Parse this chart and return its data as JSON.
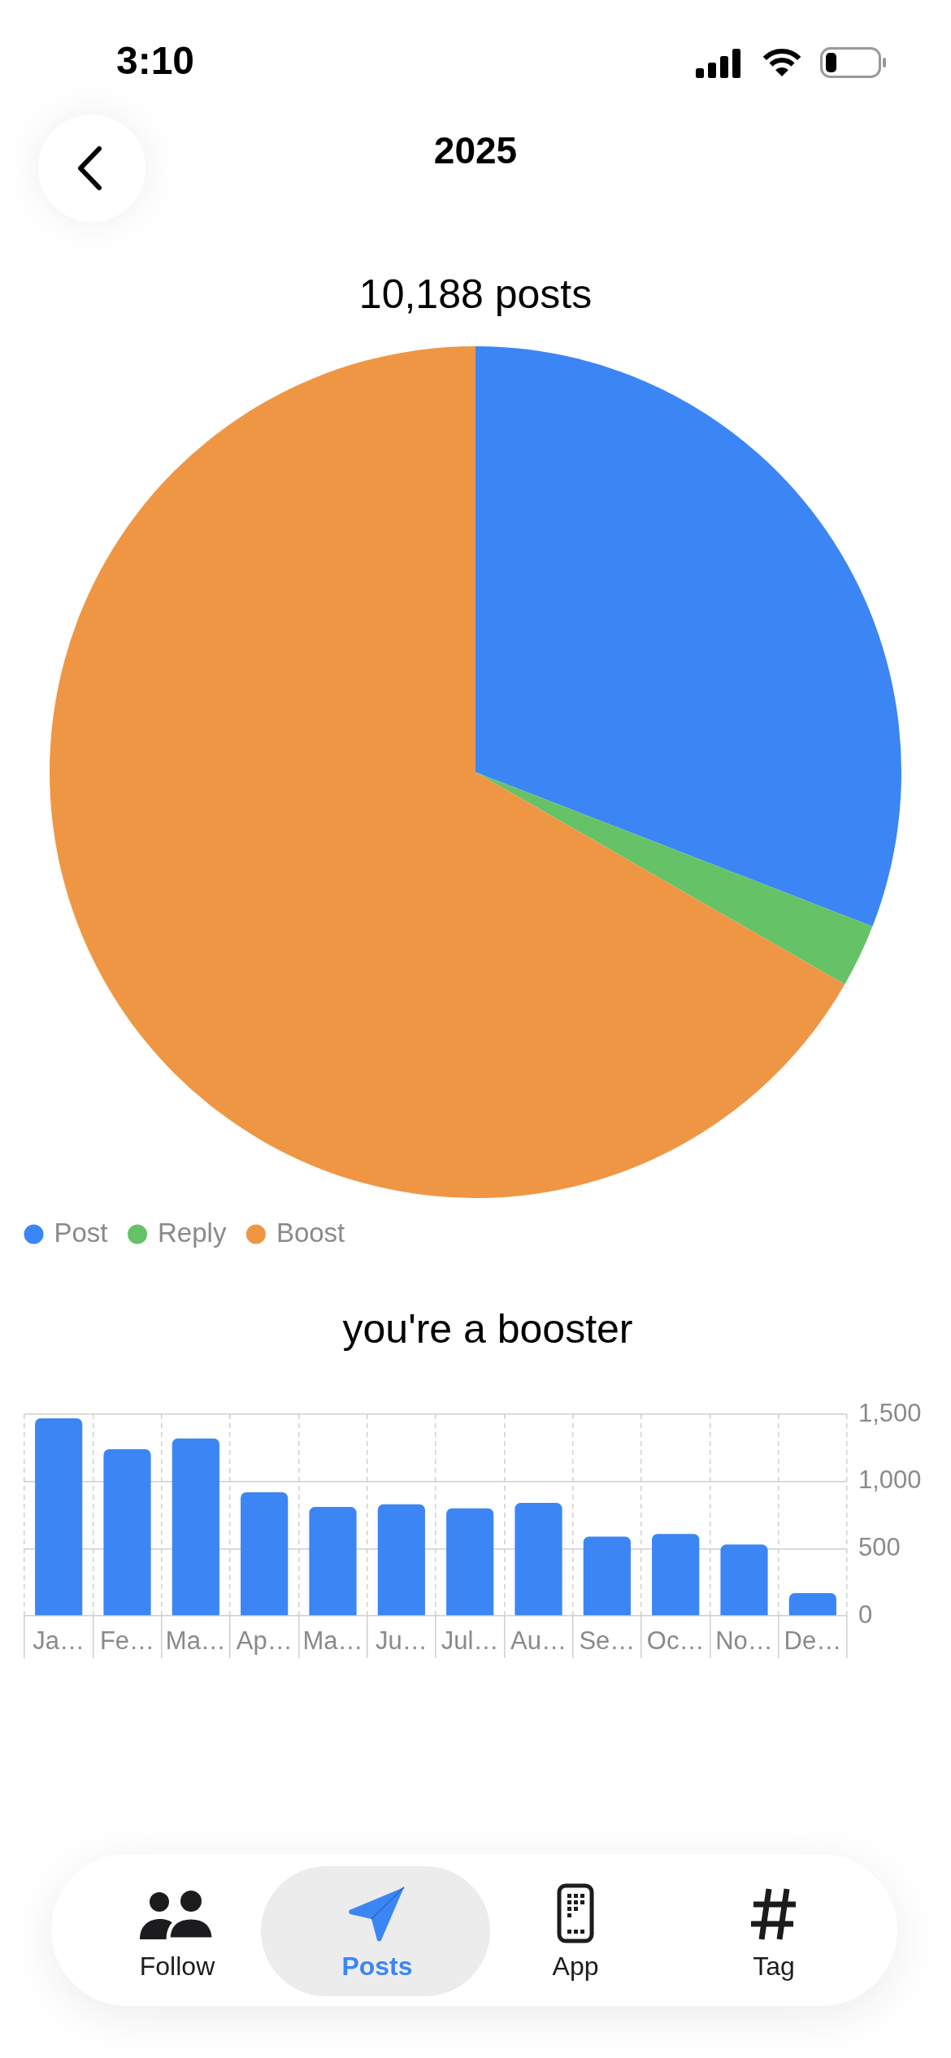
{
  "chart_data": [
    {
      "type": "pie",
      "title": "10,188 posts",
      "categories": [
        "Post",
        "Reply",
        "Boost"
      ],
      "values": [
        30.9,
        2.4,
        66.7
      ],
      "colors": [
        "#3b86f4",
        "#66c266",
        "#ef9645"
      ],
      "legend": "bottom left",
      "annotations": [
        "3:10",
        "2025"
      ]
    },
    {
      "type": "bar",
      "title": "you're a booster",
      "categories": [
        "Ja…",
        "Fe…",
        "Ma…",
        "Ap…",
        "Ma…",
        "Ju…",
        "Jul…",
        "Au…",
        "Se…",
        "Oc…",
        "No…",
        "De…"
      ],
      "values": [
        1470,
        1240,
        1320,
        920,
        810,
        830,
        800,
        840,
        590,
        610,
        530,
        170
      ],
      "color": "#3b86f4",
      "ylim": [
        0,
        1500
      ],
      "yticks": [
        0,
        500,
        {
          "value": 1000,
          "label": "1,000"
        },
        {
          "value": 1500,
          "label": "1,500"
        }
      ],
      "grid": true,
      "annotations": [
        "Follow",
        "Posts",
        "App",
        "Tag"
      ]
    }
  ]
}
